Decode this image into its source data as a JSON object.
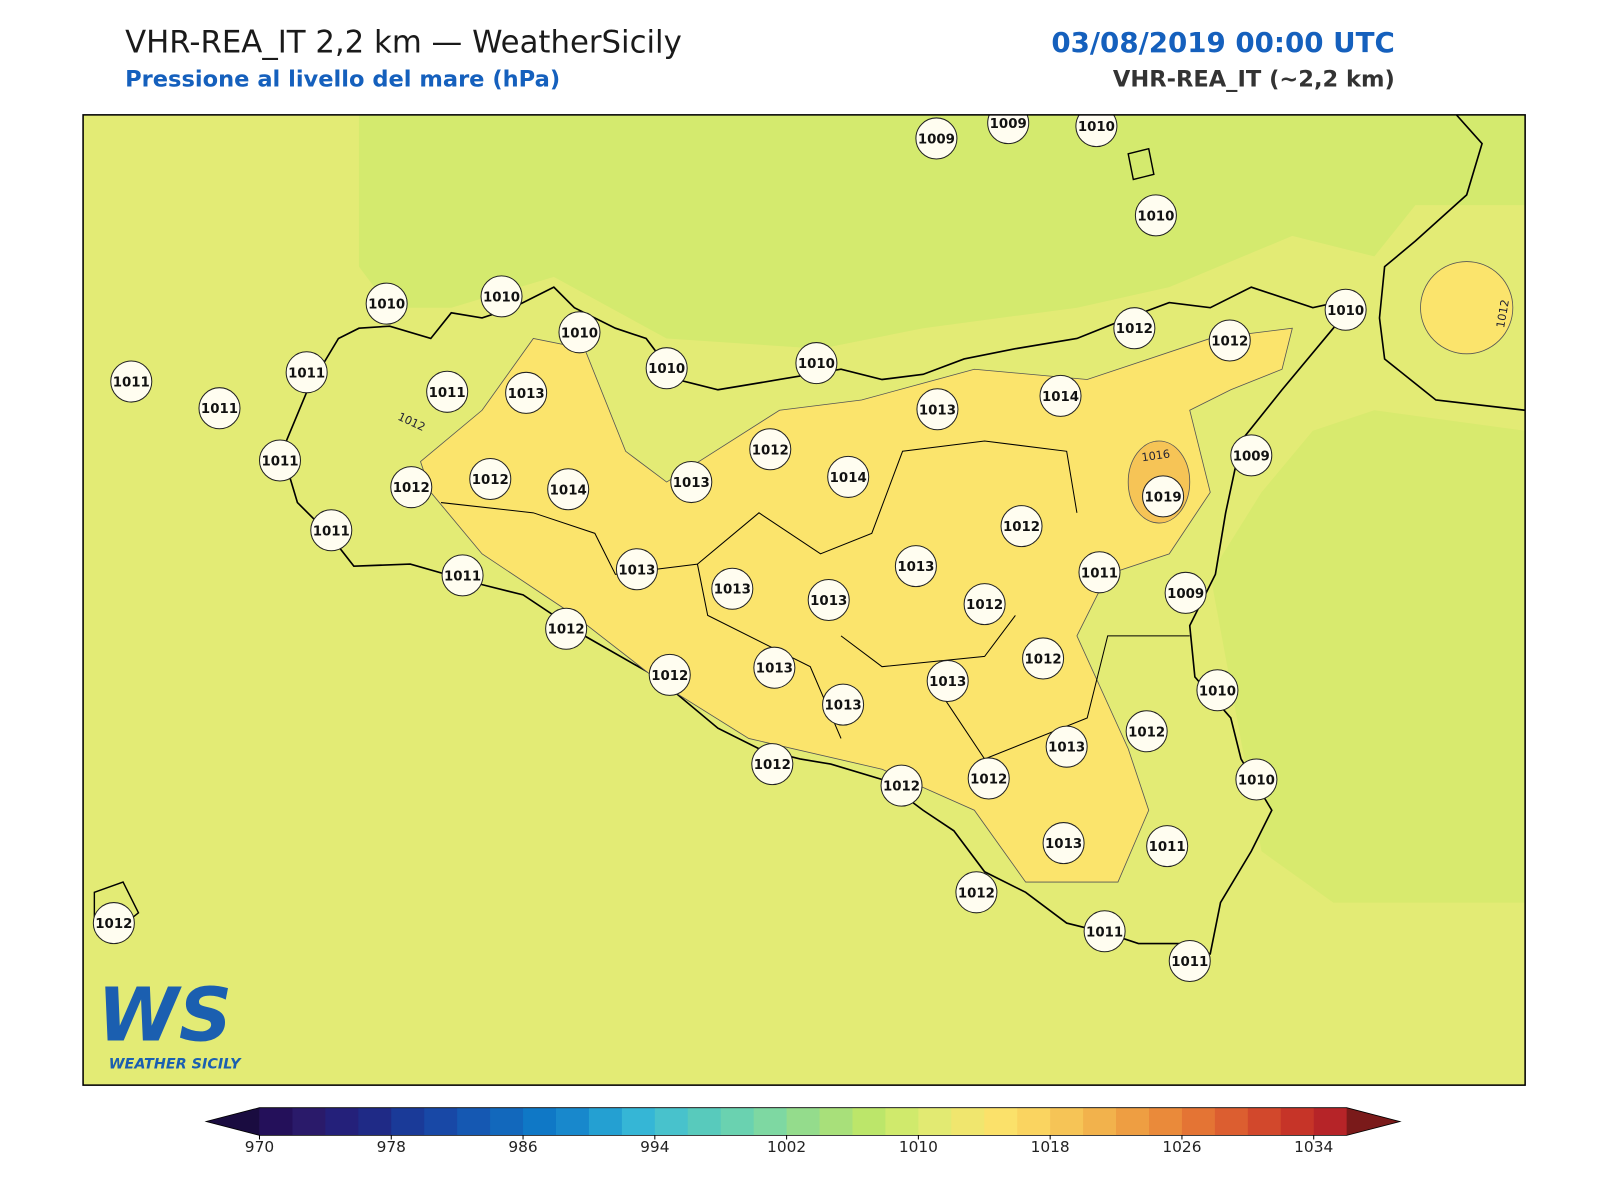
{
  "header": {
    "title": "VHR-REA_IT 2,2 km — WeatherSicily",
    "subtitle": "Pressione al livello del mare (hPa)",
    "datetime": "03/08/2019 00:00 UTC",
    "model": "VHR-REA_IT (~2,2 km)"
  },
  "map": {
    "stations": [
      1009,
      1009,
      1010,
      1010,
      1010,
      1010,
      1010,
      1010,
      1010,
      1010,
      1012,
      1012,
      1011,
      1011,
      1011,
      1011,
      1013,
      1013,
      1014,
      1011,
      1012,
      1012,
      1014,
      1013,
      1012,
      1014,
      1009,
      1019,
      1011,
      1012,
      1011,
      1013,
      1013,
      1013,
      1013,
      1012,
      1011,
      1009,
      1012,
      1012,
      1013,
      1012,
      1013,
      1013,
      1010,
      1013,
      1012,
      1012,
      1012,
      1012,
      1010,
      1013,
      1011,
      1012,
      1011,
      1011,
      1012
    ],
    "contour_labels": [
      "1012",
      "1012",
      "1016"
    ]
  },
  "colorbar": {
    "min": 970,
    "max": 1036,
    "colors": [
      "#24105a",
      "#2a1a6a",
      "#24207a",
      "#1f2a86",
      "#1a3a98",
      "#1848a6",
      "#1558b2",
      "#1268bc",
      "#0f78c6",
      "#1888cc",
      "#24a0d2",
      "#35b6d6",
      "#48c2cc",
      "#58cabc",
      "#6ad2b0",
      "#7ed8a2",
      "#94dc8c",
      "#a8e07a",
      "#bce66a",
      "#d0ea6c",
      "#e2ea72",
      "#f0e66e",
      "#fbe16a",
      "#fad460",
      "#f6c456",
      "#f2b24c",
      "#ee9e42",
      "#ea8a3a",
      "#e47434",
      "#dc5e30",
      "#d2482c",
      "#c63428",
      "#b62428"
    ],
    "under_color": "#1a0c40",
    "over_color": "#7a1a1a",
    "ticks": [
      970,
      978,
      986,
      994,
      1002,
      1010,
      1018,
      1026,
      1034
    ]
  },
  "logo": {
    "mark": "WS",
    "text": "WEATHER SICILY"
  }
}
